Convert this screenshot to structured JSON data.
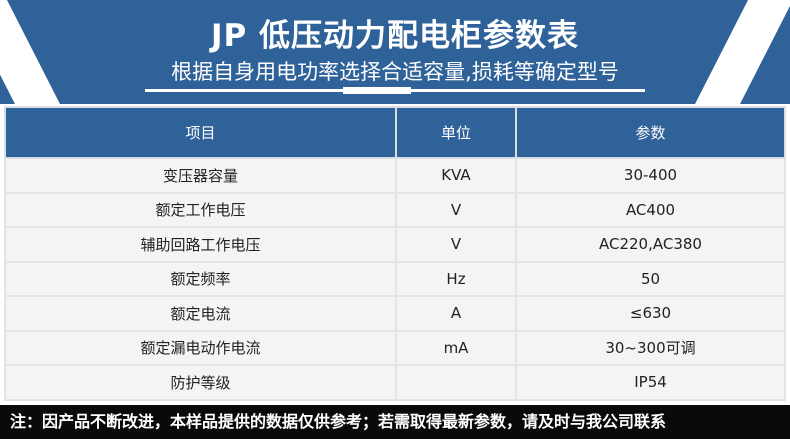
{
  "banner": {
    "title": "JP 低压动力配电柜参数表",
    "subtitle": "根据自身用电功率选择合适容量,损耗等确定型号"
  },
  "colors": {
    "primary": "#2f6299",
    "footer": "#0a0a0a"
  },
  "table": {
    "headers": [
      "项目",
      "单位",
      "参数"
    ],
    "rows": [
      [
        "变压器容量",
        "KVA",
        "30-400"
      ],
      [
        "额定工作电压",
        "V",
        "AC400"
      ],
      [
        "辅助回路工作电压",
        "V",
        "AC220,AC380"
      ],
      [
        "额定频率",
        "Hz",
        "50"
      ],
      [
        "额定电流",
        "A",
        "≤630"
      ],
      [
        "额定漏电动作电流",
        "mA",
        "30~300可调"
      ],
      [
        "防护等级",
        "",
        "IP54"
      ]
    ]
  },
  "footer": "注：因产品不断改进，本样品提供的数据仅供参考；若需取得最新参数，请及时与我公司联系"
}
